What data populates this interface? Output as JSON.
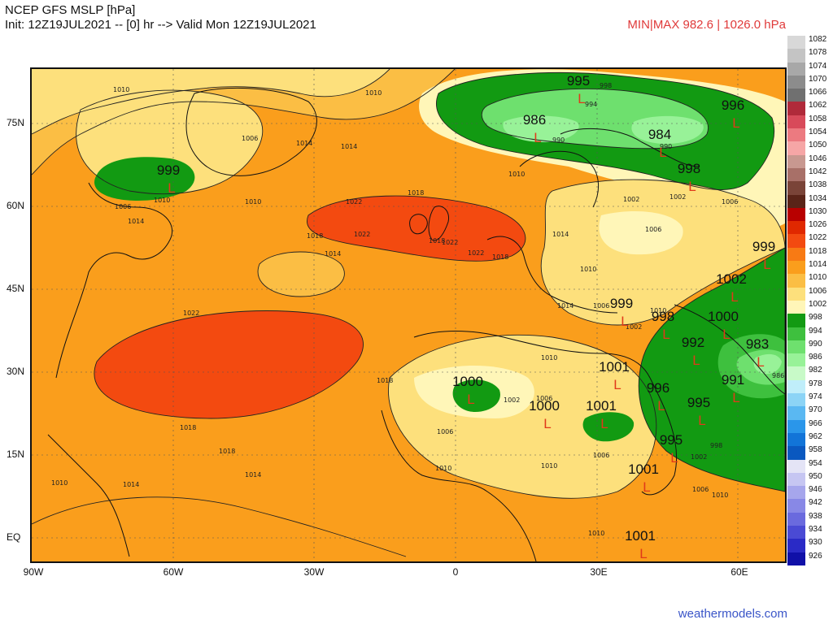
{
  "header": {
    "title_line1": "NCEP GFS MSLP [hPa]",
    "title_line2": "Init: 12Z19JUL2021 -- [0] hr --> Valid Mon 12Z19JUL2021",
    "minmax": "MIN|MAX 982.6 | 1026.0 hPa"
  },
  "footer": {
    "site": "weathermodels.com"
  },
  "axes": {
    "lat_labels": [
      "75N",
      "60N",
      "45N",
      "30N",
      "15N",
      "EQ"
    ],
    "lon_labels": [
      "90W",
      "60W",
      "30W",
      "0",
      "30E",
      "60E"
    ]
  },
  "colorbar": [
    {
      "label": "1082",
      "color": "#d8d8d8"
    },
    {
      "label": "1078",
      "color": "#c4c4c4"
    },
    {
      "label": "1074",
      "color": "#a8a8a8"
    },
    {
      "label": "1070",
      "color": "#8c8c8c"
    },
    {
      "label": "1066",
      "color": "#707070"
    },
    {
      "label": "1062",
      "color": "#b02a3a"
    },
    {
      "label": "1058",
      "color": "#d84a5a"
    },
    {
      "label": "1054",
      "color": "#ec7a80"
    },
    {
      "label": "1050",
      "color": "#f6a6a6"
    },
    {
      "label": "1046",
      "color": "#c89890"
    },
    {
      "label": "1042",
      "color": "#a87068"
    },
    {
      "label": "1038",
      "color": "#7a4438"
    },
    {
      "label": "1034",
      "color": "#5a2418"
    },
    {
      "label": "1030",
      "color": "#b80000"
    },
    {
      "label": "1026",
      "color": "#e02800"
    },
    {
      "label": "1022",
      "color": "#f34a10"
    },
    {
      "label": "1018",
      "color": "#f87a14"
    },
    {
      "label": "1014",
      "color": "#fa9e1c"
    },
    {
      "label": "1010",
      "color": "#fbbe44"
    },
    {
      "label": "1006",
      "color": "#fde07c"
    },
    {
      "label": "1002",
      "color": "#fff6b8"
    },
    {
      "label": "998",
      "color": "#129a12"
    },
    {
      "label": "994",
      "color": "#3ec03e"
    },
    {
      "label": "990",
      "color": "#6ee06e"
    },
    {
      "label": "986",
      "color": "#98f298"
    },
    {
      "label": "982",
      "color": "#c8fac8"
    },
    {
      "label": "978",
      "color": "#c0eefa"
    },
    {
      "label": "974",
      "color": "#8cd4f6"
    },
    {
      "label": "970",
      "color": "#5ab8f2"
    },
    {
      "label": "966",
      "color": "#2a96ea"
    },
    {
      "label": "962",
      "color": "#1274d8"
    },
    {
      "label": "958",
      "color": "#0a58c0"
    },
    {
      "label": "954",
      "color": "#e4e4f6"
    },
    {
      "label": "950",
      "color": "#c6c6f2"
    },
    {
      "label": "946",
      "color": "#a6a6ec"
    },
    {
      "label": "942",
      "color": "#8888e6"
    },
    {
      "label": "938",
      "color": "#6a6ade"
    },
    {
      "label": "934",
      "color": "#4a4ad4"
    },
    {
      "label": "930",
      "color": "#2a2ac6"
    },
    {
      "label": "926",
      "color": "#1010a8"
    }
  ],
  "centers": [
    {
      "value": "995",
      "kind": "L"
    },
    {
      "value": "986",
      "kind": "L"
    },
    {
      "value": "984",
      "kind": "L"
    },
    {
      "value": "996",
      "kind": "L"
    },
    {
      "value": "999",
      "kind": "L"
    },
    {
      "value": "998",
      "kind": "L"
    },
    {
      "value": "999",
      "kind": "L"
    },
    {
      "value": "1002",
      "kind": "L"
    },
    {
      "value": "999",
      "kind": "L"
    },
    {
      "value": "998",
      "kind": "L"
    },
    {
      "value": "1000",
      "kind": "L"
    },
    {
      "value": "992",
      "kind": "L"
    },
    {
      "value": "983",
      "kind": "L"
    },
    {
      "value": "1001",
      "kind": "L"
    },
    {
      "value": "996",
      "kind": "L"
    },
    {
      "value": "991",
      "kind": "L"
    },
    {
      "value": "995",
      "kind": "L"
    },
    {
      "value": "1001",
      "kind": "L"
    },
    {
      "value": "1000",
      "kind": "L"
    },
    {
      "value": "1000",
      "kind": "L"
    },
    {
      "value": "1001",
      "kind": "L"
    },
    {
      "value": "995",
      "kind": "L"
    },
    {
      "value": "1001",
      "kind": "L"
    }
  ],
  "isobar_labels": [
    "1010",
    "1010",
    "1006",
    "1014",
    "1014",
    "1010",
    "1006",
    "1014",
    "1010",
    "1010",
    "1018",
    "1022",
    "1018",
    "1014",
    "1022",
    "1022",
    "1018",
    "1022",
    "1018",
    "1014",
    "1018",
    "1010",
    "1014",
    "1018",
    "1006",
    "1002",
    "1006",
    "1010",
    "1014",
    "1010",
    "1006",
    "1002",
    "1006",
    "1010",
    "1010",
    "1010",
    "1006",
    "1002",
    "998",
    "994",
    "990",
    "986",
    "990",
    "998",
    "1002",
    "1006",
    "1002",
    "1006",
    "1010",
    "1014",
    "1018",
    "1022",
    "1010"
  ]
}
